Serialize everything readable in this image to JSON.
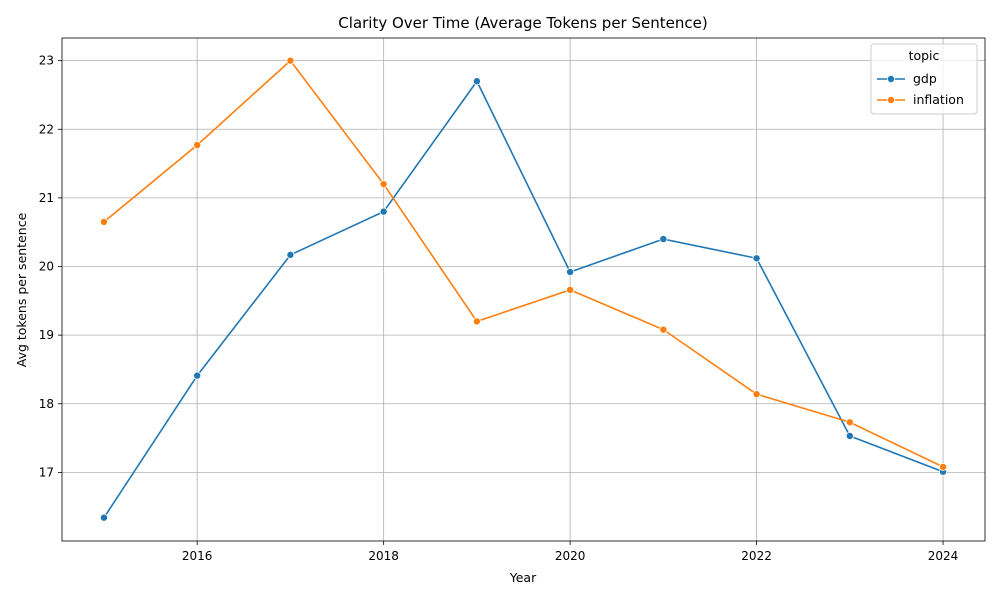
{
  "chart_data": {
    "type": "line",
    "title": "Clarity Over Time (Average Tokens per Sentence)",
    "xlabel": "Year",
    "ylabel": "Avg tokens per sentence",
    "x": [
      2015,
      2016,
      2017,
      2018,
      2019,
      2020,
      2021,
      2022,
      2023,
      2024
    ],
    "xlim": [
      2014.55,
      2024.45
    ],
    "ylim": [
      16.0,
      23.33
    ],
    "xticks": [
      2016,
      2018,
      2020,
      2022,
      2024
    ],
    "yticks": [
      17,
      18,
      19,
      20,
      21,
      22,
      23
    ],
    "grid": true,
    "legend": {
      "title": "topic",
      "placement": "top-right"
    },
    "series": [
      {
        "name": "gdp",
        "color": "#1f77b4",
        "values": [
          16.34,
          18.41,
          20.17,
          20.8,
          22.7,
          19.92,
          20.4,
          20.12,
          17.53,
          17.01
        ]
      },
      {
        "name": "inflation",
        "color": "#ff7f0e",
        "values": [
          20.65,
          21.77,
          23.0,
          21.2,
          19.2,
          19.66,
          19.08,
          18.14,
          17.73,
          17.08
        ]
      }
    ]
  }
}
